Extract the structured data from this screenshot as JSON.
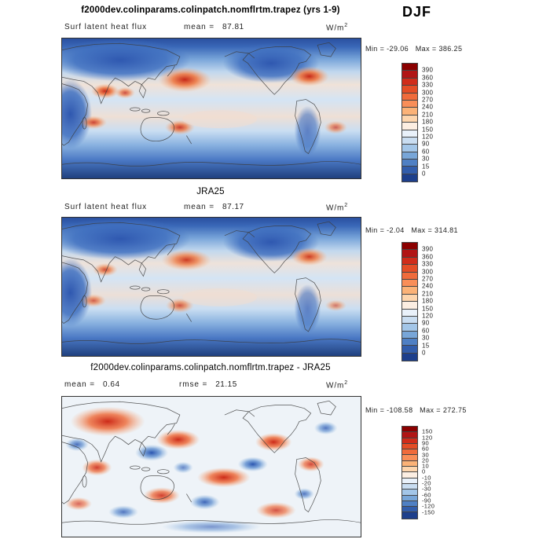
{
  "header": {
    "title": "f2000dev.colinparams.colinpatch.nomflrtm.trapez (yrs 1-9)",
    "season": "DJF"
  },
  "panels": [
    {
      "name": "model",
      "field_label": "Surf latent heat flux",
      "mean_label": "mean =",
      "mean_value": "87.81",
      "units_base": "W/m",
      "units_sup": "2",
      "minmax": "Min = -29.06   Max = 386.25",
      "colorbar": {
        "labels": [
          "390",
          "360",
          "330",
          "300",
          "270",
          "240",
          "210",
          "180",
          "150",
          "120",
          "90",
          "60",
          "30",
          "15",
          "0"
        ],
        "colors": [
          "#8b0000",
          "#b11515",
          "#d02c1a",
          "#e44d26",
          "#f06b3b",
          "#f98e58",
          "#fbb277",
          "#fdd5ad",
          "#fceee2",
          "#e9f1fa",
          "#c9ddf1",
          "#a3c6e8",
          "#78a6d8",
          "#4f80c4",
          "#325dab",
          "#1d3f8c"
        ]
      }
    },
    {
      "name": "reference",
      "title": "JRA25",
      "field_label": "Surf latent heat flux",
      "mean_label": "mean =",
      "mean_value": "87.17",
      "units_base": "W/m",
      "units_sup": "2",
      "minmax": "Min = -2.04   Max = 314.81",
      "colorbar": {
        "labels": [
          "390",
          "360",
          "330",
          "300",
          "270",
          "240",
          "210",
          "180",
          "150",
          "120",
          "90",
          "60",
          "30",
          "15",
          "0"
        ],
        "colors": [
          "#8b0000",
          "#b11515",
          "#d02c1a",
          "#e44d26",
          "#f06b3b",
          "#f98e58",
          "#fbb277",
          "#fdd5ad",
          "#fceee2",
          "#e9f1fa",
          "#c9ddf1",
          "#a3c6e8",
          "#78a6d8",
          "#4f80c4",
          "#325dab",
          "#1d3f8c"
        ]
      }
    },
    {
      "name": "difference",
      "title": "f2000dev.colinparams.colinpatch.nomflrtm.trapez - JRA25",
      "mean_label": "mean =",
      "mean_value": "0.64",
      "rmse_label": "rmse =",
      "rmse_value": "21.15",
      "units_base": "W/m",
      "units_sup": "2",
      "minmax": "Min = -108.58   Max = 272.75",
      "colorbar": {
        "labels": [
          "150",
          "120",
          "90",
          "60",
          "30",
          "20",
          "10",
          "0",
          "-10",
          "-20",
          "-30",
          "-60",
          "-90",
          "-120",
          "-150"
        ],
        "colors": [
          "#8b0000",
          "#b11515",
          "#d02c1a",
          "#e44d26",
          "#f06b3b",
          "#f98e58",
          "#fbb277",
          "#fdd5ad",
          "#fceee2",
          "#e9f1fa",
          "#c9ddf1",
          "#a3c6e8",
          "#78a6d8",
          "#4f80c4",
          "#325dab",
          "#1d3f8c"
        ]
      }
    }
  ],
  "chart_data": [
    {
      "type": "heatmap",
      "panel": "model",
      "title": "f2000dev.colinparams.colinpatch.nomflrtm.trapez (yrs 1-9)",
      "field": "Surf latent heat flux",
      "season": "DJF",
      "units": "W/m^2",
      "mean": 87.81,
      "min": -29.06,
      "max": 386.25,
      "colorbar_ticks": [
        390,
        360,
        330,
        300,
        270,
        240,
        210,
        180,
        150,
        120,
        90,
        60,
        30,
        15,
        0
      ],
      "projection": "global cylindrical lat-lon, Pacific-centered",
      "legend_position": "right"
    },
    {
      "type": "heatmap",
      "panel": "reference",
      "title": "JRA25",
      "field": "Surf latent heat flux",
      "season": "DJF",
      "units": "W/m^2",
      "mean": 87.17,
      "min": -2.04,
      "max": 314.81,
      "colorbar_ticks": [
        390,
        360,
        330,
        300,
        270,
        240,
        210,
        180,
        150,
        120,
        90,
        60,
        30,
        15,
        0
      ],
      "projection": "global cylindrical lat-lon, Pacific-centered",
      "legend_position": "right"
    },
    {
      "type": "heatmap",
      "panel": "difference",
      "title": "f2000dev.colinparams.colinpatch.nomflrtm.trapez - JRA25",
      "field": "Surf latent heat flux difference (model minus JRA25)",
      "season": "DJF",
      "units": "W/m^2",
      "mean": 0.64,
      "rmse": 21.15,
      "min": -108.58,
      "max": 272.75,
      "colorbar_ticks": [
        150,
        120,
        90,
        60,
        30,
        20,
        10,
        0,
        -10,
        -20,
        -30,
        -60,
        -90,
        -120,
        -150
      ],
      "projection": "global cylindrical lat-lon, Pacific-centered",
      "legend_position": "right"
    }
  ]
}
